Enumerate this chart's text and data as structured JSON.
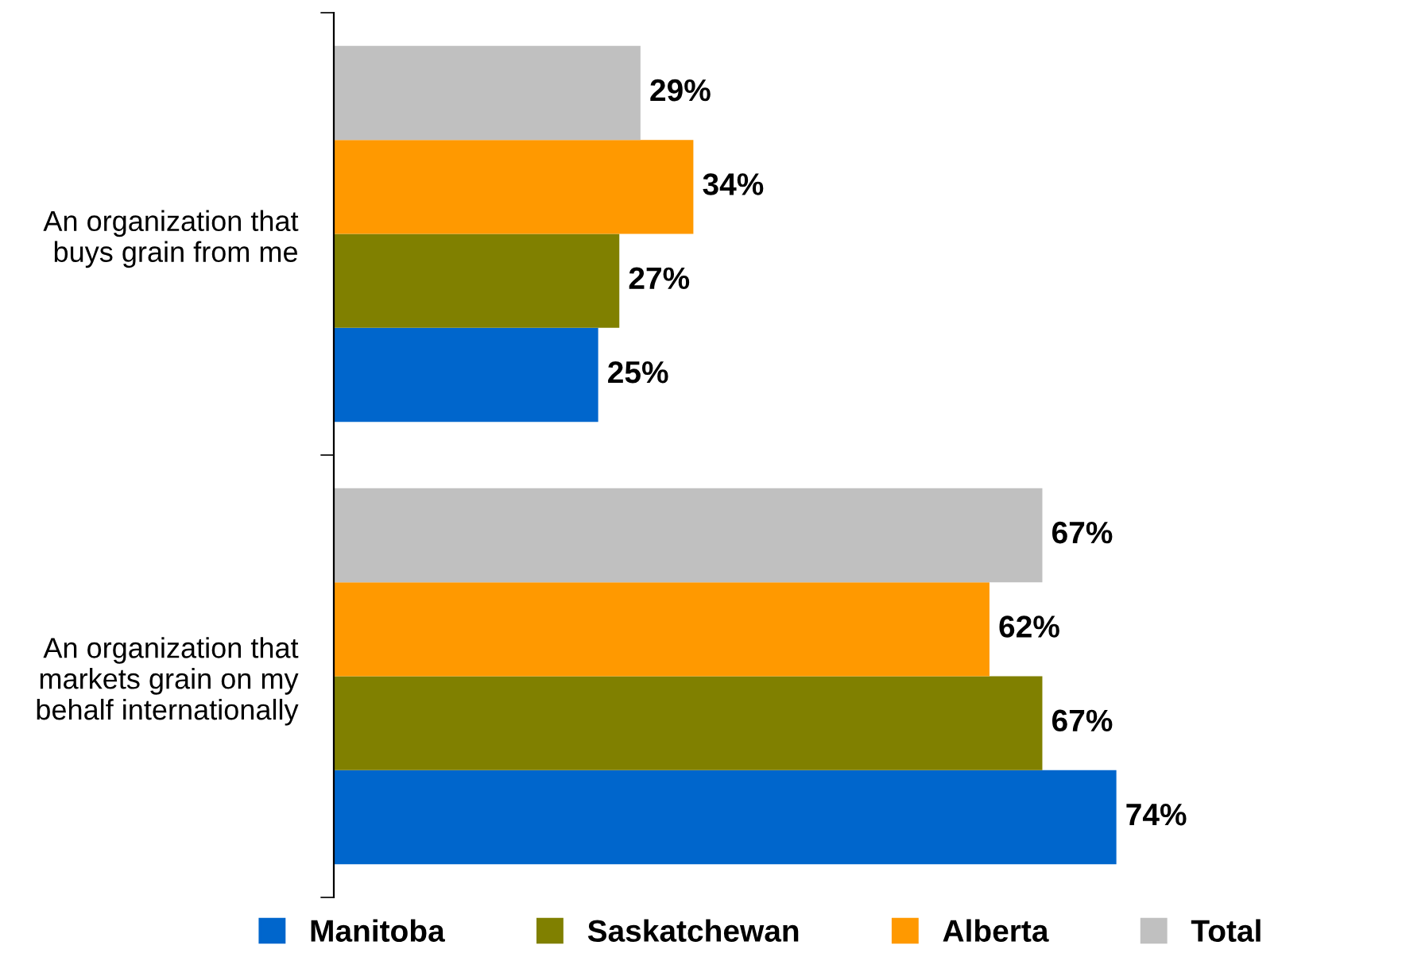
{
  "chart_data": {
    "type": "bar",
    "orientation": "horizontal",
    "categories": [
      "An organization that\nbuys grain from me",
      "An organization that\nmarkets grain on my\nbehalf internationally"
    ],
    "series": [
      {
        "name": "Manitoba",
        "color": "#0066cc",
        "values": [
          25,
          74
        ],
        "value_labels": [
          "25%",
          "74%"
        ]
      },
      {
        "name": "Saskatchewan",
        "color": "#808000",
        "values": [
          27,
          67
        ],
        "value_labels": [
          "27%",
          "67%"
        ]
      },
      {
        "name": "Alberta",
        "color": "#ff9900",
        "values": [
          34,
          62
        ],
        "value_labels": [
          "34%",
          "62%"
        ]
      },
      {
        "name": "Total",
        "color": "#c0c0c0",
        "values": [
          29,
          67
        ],
        "value_labels": [
          "29%",
          "67%"
        ]
      }
    ],
    "legend": "bottom",
    "grid": false
  }
}
